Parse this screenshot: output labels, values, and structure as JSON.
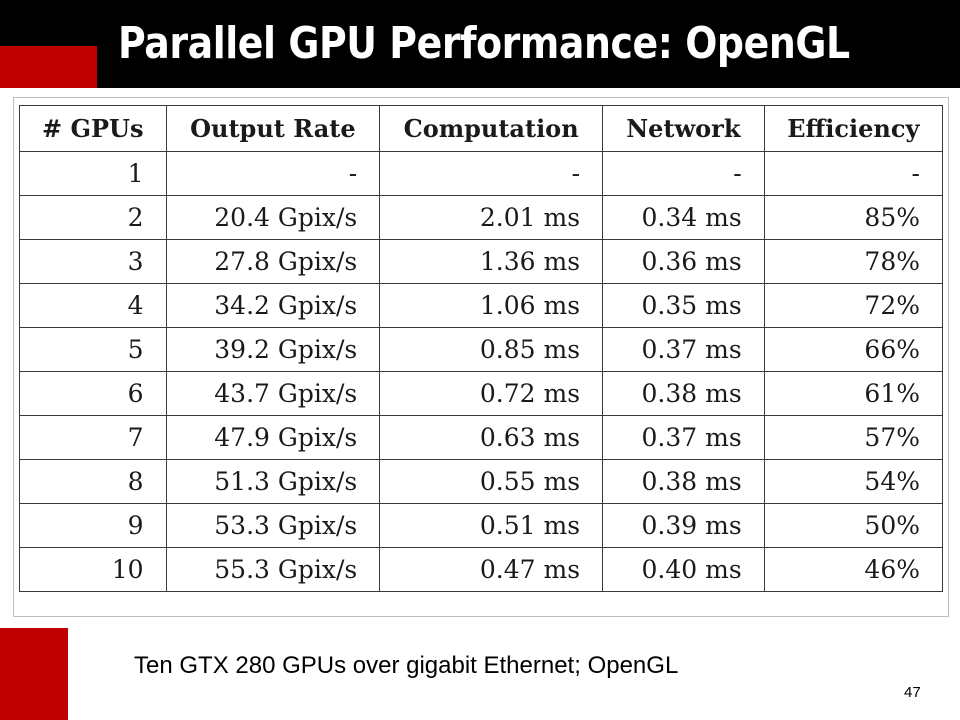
{
  "slide": {
    "title": "Parallel GPU Performance: OpenGL",
    "caption": "Ten GTX 280 GPUs over gigabit Ethernet; OpenGL",
    "page_number": "47",
    "colors": {
      "title_bar": "#000000",
      "accent_red": "#c00000",
      "title_text": "#ffffff"
    }
  },
  "table": {
    "headers": [
      "# GPUs",
      "Output Rate",
      "Computation",
      "Network",
      "Efficiency"
    ],
    "rows": [
      [
        "1",
        "-",
        "-",
        "-",
        "-"
      ],
      [
        "2",
        "20.4 Gpix/s",
        "2.01 ms",
        "0.34 ms",
        "85%"
      ],
      [
        "3",
        "27.8 Gpix/s",
        "1.36 ms",
        "0.36 ms",
        "78%"
      ],
      [
        "4",
        "34.2 Gpix/s",
        "1.06 ms",
        "0.35 ms",
        "72%"
      ],
      [
        "5",
        "39.2 Gpix/s",
        "0.85 ms",
        "0.37 ms",
        "66%"
      ],
      [
        "6",
        "43.7 Gpix/s",
        "0.72 ms",
        "0.38 ms",
        "61%"
      ],
      [
        "7",
        "47.9 Gpix/s",
        "0.63 ms",
        "0.37 ms",
        "57%"
      ],
      [
        "8",
        "51.3 Gpix/s",
        "0.55 ms",
        "0.38 ms",
        "54%"
      ],
      [
        "9",
        "53.3 Gpix/s",
        "0.51 ms",
        "0.39 ms",
        "50%"
      ],
      [
        "10",
        "55.3 Gpix/s",
        "0.47 ms",
        "0.40 ms",
        "46%"
      ]
    ]
  }
}
